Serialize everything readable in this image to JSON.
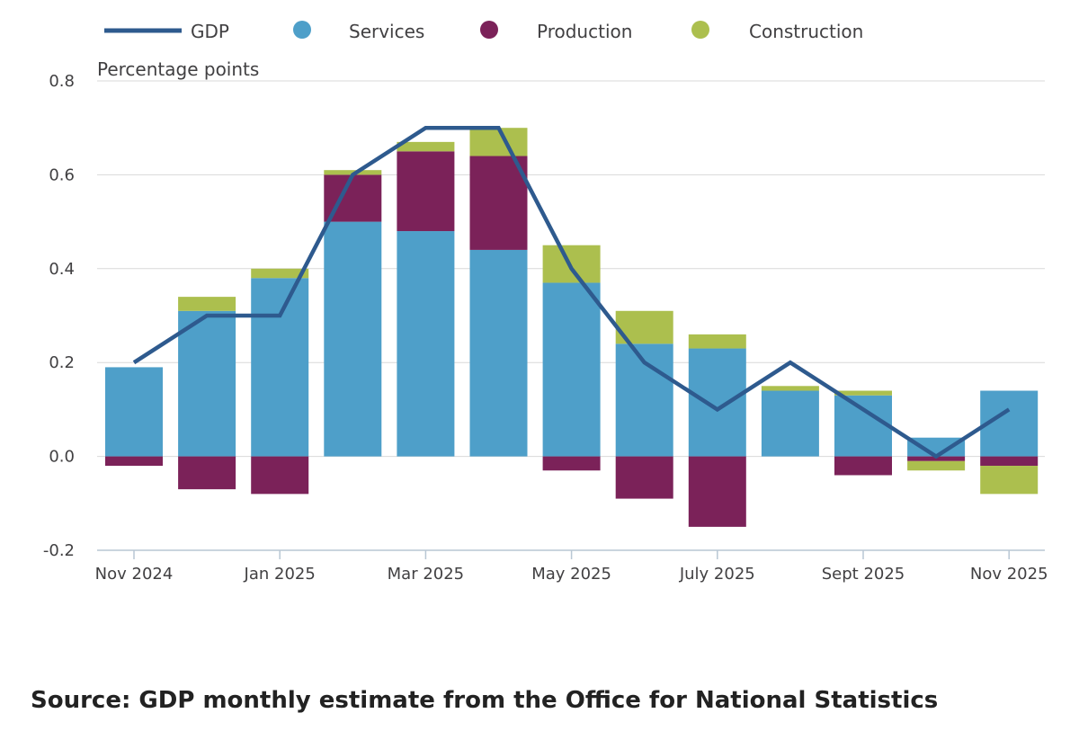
{
  "chart_data": {
    "type": "bar",
    "stacked": true,
    "unit_label": "Percentage points",
    "categories": [
      "Nov 2024",
      "Dec 2024",
      "Jan 2025",
      "Feb 2025",
      "Mar 2025",
      "Apr 2025",
      "May 2025",
      "Jun 2025",
      "July 2025",
      "Aug 2025",
      "Sept 2025",
      "Oct 2025",
      "Nov 2025"
    ],
    "x_tick_labels": [
      "Nov 2024",
      "Jan 2025",
      "Mar 2025",
      "May 2025",
      "July 2025",
      "Sept 2025",
      "Nov 2025"
    ],
    "x_tick_label_categories": [
      0,
      2,
      4,
      6,
      8,
      10,
      12
    ],
    "ylim": [
      -0.2,
      0.8
    ],
    "y_ticks": [
      -0.2,
      0.0,
      0.2,
      0.4,
      0.6,
      0.8
    ],
    "y_tick_labels": [
      "-0.2",
      "0.0",
      "0.2",
      "0.4",
      "0.6",
      "0.8"
    ],
    "grid": true,
    "legend_position": "top",
    "series": [
      {
        "name": "Services",
        "kind": "bar",
        "color": "#4e9fc9",
        "values": [
          0.19,
          0.31,
          0.38,
          0.5,
          0.48,
          0.44,
          0.37,
          0.24,
          0.23,
          0.14,
          0.13,
          0.04,
          0.14
        ]
      },
      {
        "name": "Production",
        "kind": "bar",
        "color": "#7b2259",
        "values": [
          -0.02,
          -0.07,
          -0.08,
          0.1,
          0.17,
          0.2,
          -0.03,
          -0.09,
          -0.15,
          0.0,
          -0.04,
          -0.01,
          -0.02
        ]
      },
      {
        "name": "Construction",
        "kind": "bar",
        "color": "#acbf4e",
        "values": [
          0.0,
          0.03,
          0.02,
          0.01,
          0.02,
          0.06,
          0.08,
          0.07,
          0.03,
          0.01,
          0.01,
          -0.02,
          -0.06
        ]
      },
      {
        "name": "GDP",
        "kind": "line",
        "color": "#2e5a8e",
        "values": [
          0.2,
          0.3,
          0.3,
          0.6,
          0.7,
          0.7,
          0.4,
          0.2,
          0.1,
          0.2,
          0.1,
          0.0,
          0.1
        ]
      }
    ],
    "legend": [
      "GDP",
      "Services",
      "Production",
      "Construction"
    ]
  },
  "source_text": "Source: GDP monthly estimate from the Office for National Statistics"
}
